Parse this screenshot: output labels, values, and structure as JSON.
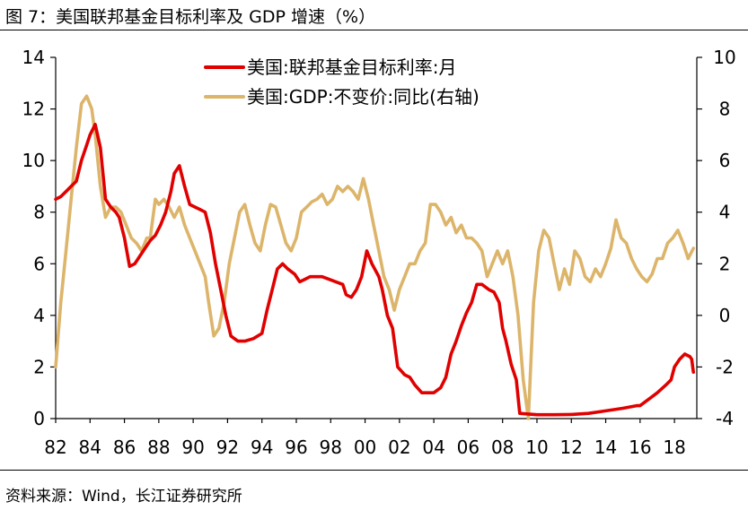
{
  "figure": {
    "title": "图  7：美国联邦基金目标利率及 GDP 增速（%）",
    "source": "资料来源：Wind，长江证券研究所"
  },
  "colors": {
    "fed_rate": "#e00000",
    "gdp": "#dcb56b",
    "axis": "#000000"
  },
  "chart_data": {
    "type": "line",
    "title": "美国联邦基金目标利率及 GDP 增速（%）",
    "xlabel": "",
    "ylabel_left": "",
    "ylabel_right": "",
    "grid": false,
    "legend_position": "top-center",
    "x_range": [
      1982,
      2019.3
    ],
    "x_ticks": [
      1982,
      1984,
      1986,
      1988,
      1990,
      1992,
      1994,
      1996,
      1998,
      2000,
      2002,
      2004,
      2006,
      2008,
      2010,
      2012,
      2014,
      2016,
      2018
    ],
    "x_tick_labels": [
      "82",
      "84",
      "86",
      "88",
      "90",
      "92",
      "94",
      "96",
      "98",
      "00",
      "02",
      "04",
      "06",
      "08",
      "10",
      "12",
      "14",
      "16",
      "18"
    ],
    "y_left": {
      "range": [
        0,
        14
      ],
      "ticks": [
        0,
        2,
        4,
        6,
        8,
        10,
        12,
        14
      ]
    },
    "y_right": {
      "range": [
        -4,
        10
      ],
      "ticks": [
        -4,
        -2,
        0,
        2,
        4,
        6,
        8,
        10
      ]
    },
    "series": [
      {
        "name": "美国:联邦基金目标利率:月",
        "axis": "left",
        "color": "#e00000",
        "x": [
          1982.0,
          1982.3,
          1982.6,
          1982.9,
          1983.2,
          1983.5,
          1983.8,
          1984.0,
          1984.3,
          1984.6,
          1984.9,
          1985.2,
          1985.5,
          1985.7,
          1986.0,
          1986.3,
          1986.6,
          1986.9,
          1987.2,
          1987.5,
          1987.8,
          1988.1,
          1988.4,
          1988.7,
          1988.9,
          1989.2,
          1989.5,
          1989.8,
          1990.1,
          1990.4,
          1990.7,
          1991.0,
          1991.3,
          1991.6,
          1991.9,
          1992.2,
          1992.6,
          1993.0,
          1993.5,
          1994.0,
          1994.3,
          1994.6,
          1994.9,
          1995.2,
          1995.5,
          1995.9,
          1996.2,
          1996.5,
          1996.8,
          1997.1,
          1997.5,
          1997.9,
          1998.3,
          1998.7,
          1998.9,
          1999.2,
          1999.5,
          1999.8,
          2000.1,
          2000.4,
          2000.8,
          2001.0,
          2001.3,
          2001.6,
          2001.9,
          2002.3,
          2002.6,
          2002.9,
          2003.3,
          2003.6,
          2004.0,
          2004.4,
          2004.7,
          2005.0,
          2005.3,
          2005.6,
          2005.9,
          2006.2,
          2006.5,
          2006.8,
          2007.2,
          2007.5,
          2007.8,
          2008.0,
          2008.2,
          2008.5,
          2008.8,
          2009.0,
          2010.0,
          2011.0,
          2012.0,
          2013.0,
          2014.0,
          2015.0,
          2015.8,
          2016.0,
          2016.5,
          2017.0,
          2017.5,
          2017.8,
          2018.0,
          2018.3,
          2018.6,
          2018.9,
          2019.0,
          2019.1
        ],
        "values": [
          8.5,
          8.6,
          8.8,
          9.0,
          9.2,
          10.0,
          10.6,
          11.0,
          11.4,
          10.5,
          8.5,
          8.2,
          8.0,
          7.8,
          7.0,
          5.9,
          6.0,
          6.3,
          6.6,
          6.9,
          7.1,
          7.5,
          8.0,
          8.8,
          9.5,
          9.8,
          9.0,
          8.3,
          8.2,
          8.1,
          8.0,
          7.2,
          6.0,
          5.0,
          4.0,
          3.2,
          3.0,
          3.0,
          3.1,
          3.3,
          4.2,
          5.0,
          5.8,
          6.0,
          5.8,
          5.6,
          5.3,
          5.4,
          5.5,
          5.5,
          5.5,
          5.4,
          5.3,
          5.2,
          4.8,
          4.7,
          5.0,
          5.5,
          6.5,
          6.0,
          5.5,
          5.0,
          4.0,
          3.5,
          2.0,
          1.7,
          1.6,
          1.3,
          1.0,
          1.0,
          1.0,
          1.2,
          1.6,
          2.5,
          3.0,
          3.6,
          4.1,
          4.5,
          5.2,
          5.2,
          5.0,
          4.9,
          4.5,
          3.5,
          3.0,
          2.1,
          1.5,
          0.2,
          0.15,
          0.15,
          0.16,
          0.2,
          0.3,
          0.4,
          0.5,
          0.5,
          0.75,
          1.0,
          1.3,
          1.5,
          2.0,
          2.3,
          2.5,
          2.4,
          2.3,
          1.8
        ]
      },
      {
        "name": "美国:GDP:不变价:同比(右轴)",
        "axis": "right",
        "color": "#dcb56b",
        "x": [
          1982.0,
          1982.3,
          1982.6,
          1982.9,
          1983.2,
          1983.5,
          1983.8,
          1984.1,
          1984.3,
          1984.6,
          1984.9,
          1985.2,
          1985.5,
          1985.8,
          1986.1,
          1986.4,
          1986.7,
          1987.0,
          1987.3,
          1987.5,
          1987.8,
          1988.0,
          1988.3,
          1988.6,
          1988.9,
          1989.2,
          1989.5,
          1989.8,
          1990.1,
          1990.4,
          1990.7,
          1990.9,
          1991.2,
          1991.5,
          1991.8,
          1992.1,
          1992.4,
          1992.7,
          1993.0,
          1993.3,
          1993.6,
          1993.9,
          1994.2,
          1994.5,
          1994.8,
          1995.1,
          1995.4,
          1995.7,
          1996.0,
          1996.3,
          1996.6,
          1996.9,
          1997.2,
          1997.5,
          1997.8,
          1998.1,
          1998.4,
          1998.7,
          1999.0,
          1999.3,
          1999.6,
          1999.9,
          2000.2,
          2000.5,
          2000.8,
          2001.1,
          2001.4,
          2001.7,
          2002.0,
          2002.3,
          2002.6,
          2002.9,
          2003.2,
          2003.5,
          2003.8,
          2004.1,
          2004.4,
          2004.7,
          2005.0,
          2005.3,
          2005.6,
          2005.9,
          2006.2,
          2006.5,
          2006.8,
          2007.1,
          2007.4,
          2007.7,
          2008.0,
          2008.3,
          2008.6,
          2008.9,
          2009.2,
          2009.5,
          2009.8,
          2010.1,
          2010.4,
          2010.7,
          2011.0,
          2011.3,
          2011.6,
          2011.9,
          2012.2,
          2012.5,
          2012.8,
          2013.1,
          2013.4,
          2013.7,
          2014.0,
          2014.3,
          2014.6,
          2014.9,
          2015.2,
          2015.5,
          2015.8,
          2016.1,
          2016.4,
          2016.7,
          2017.0,
          2017.3,
          2017.6,
          2017.9,
          2018.2,
          2018.5,
          2018.8,
          2019.1
        ],
        "values": [
          -2.0,
          0.5,
          2.5,
          4.5,
          6.5,
          8.2,
          8.5,
          8.0,
          7.0,
          5.0,
          3.8,
          4.2,
          4.2,
          4.0,
          3.5,
          3.0,
          2.8,
          2.5,
          3.0,
          3.0,
          4.5,
          4.3,
          4.5,
          4.2,
          3.8,
          4.2,
          3.5,
          3.0,
          2.5,
          2.0,
          1.5,
          0.5,
          -0.8,
          -0.5,
          0.5,
          2.0,
          3.0,
          4.0,
          4.3,
          3.5,
          2.8,
          2.5,
          3.5,
          4.3,
          4.2,
          3.5,
          2.8,
          2.5,
          3.0,
          4.0,
          4.2,
          4.4,
          4.5,
          4.7,
          4.3,
          4.5,
          5.0,
          4.8,
          5.0,
          4.8,
          4.5,
          5.3,
          4.5,
          3.5,
          2.5,
          1.5,
          1.0,
          0.2,
          1.0,
          1.5,
          2.0,
          2.0,
          2.5,
          2.8,
          4.3,
          4.3,
          4.0,
          3.5,
          3.8,
          3.2,
          3.5,
          3.0,
          3.0,
          2.8,
          2.5,
          1.5,
          2.0,
          2.5,
          2.0,
          2.5,
          1.5,
          0.0,
          -2.5,
          -4.0,
          0.5,
          2.5,
          3.3,
          3.0,
          2.0,
          1.0,
          1.8,
          1.2,
          2.5,
          2.2,
          1.5,
          1.3,
          1.8,
          1.5,
          2.0,
          2.6,
          3.7,
          3.0,
          2.8,
          2.2,
          1.8,
          1.5,
          1.3,
          1.6,
          2.2,
          2.2,
          2.8,
          3.0,
          3.3,
          2.8,
          2.2,
          2.6
        ]
      }
    ]
  }
}
